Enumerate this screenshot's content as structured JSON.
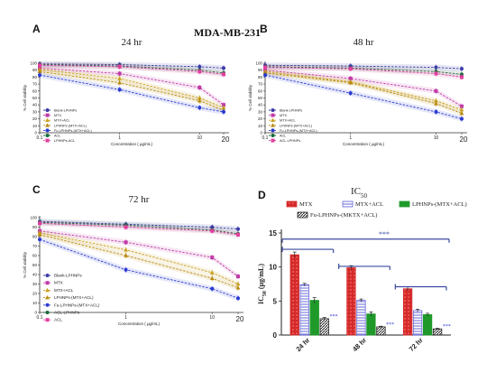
{
  "figure": {
    "main_title": "MDA-MB-231"
  },
  "chart_data": [
    {
      "panel": "A",
      "type": "line",
      "title": "24 hr",
      "xlabel": "Concentration ( µg/mL)",
      "ylabel": "% Cell viability",
      "xscale": "log",
      "x": [
        0.1,
        1,
        10,
        20
      ],
      "x_tick_labels": [
        "0.1",
        "1",
        "10",
        "20"
      ],
      "ylim": [
        0,
        100
      ],
      "y_ticks": [
        0,
        10,
        20,
        30,
        40,
        50,
        60,
        70,
        80,
        90,
        100
      ],
      "legend_position": "bottom-left",
      "series": [
        {
          "name": "Blank-LPHNPs",
          "color": "#3a3aa8",
          "marker": "circle",
          "values": [
            99,
            98,
            95,
            93
          ]
        },
        {
          "name": "MTX",
          "color": "#c03aa8",
          "marker": "square",
          "values": [
            93,
            85,
            65,
            40
          ]
        },
        {
          "name": "MTX+ACL",
          "color": "#c8a020",
          "marker": "triangle",
          "values": [
            91,
            78,
            50,
            36
          ]
        },
        {
          "name": "LPHNPs-(MTX+ACL)",
          "color": "#b88a10",
          "marker": "triangle",
          "values": [
            88,
            72,
            46,
            32
          ]
        },
        {
          "name": "Fu-LPHNPs-(MTX+ACL)",
          "color": "#2a3ad0",
          "marker": "circle",
          "values": [
            83,
            62,
            36,
            30
          ]
        },
        {
          "name": "ACL",
          "color": "#1a6a3a",
          "marker": "circle",
          "values": [
            98,
            96,
            90,
            86
          ]
        },
        {
          "name": "LPHNPs-ACL",
          "color": "#e040a0",
          "marker": "square",
          "values": [
            97,
            95,
            88,
            84
          ]
        }
      ]
    },
    {
      "panel": "B",
      "type": "line",
      "title": "48 hr",
      "xlabel": "Concentration ( µg/mL)",
      "ylabel": "% Cell viability",
      "xscale": "log",
      "x": [
        0.1,
        1,
        10,
        20
      ],
      "x_tick_labels": [
        "0.1",
        "1",
        "10",
        "20"
      ],
      "ylim": [
        0,
        100
      ],
      "y_ticks": [
        0,
        10,
        20,
        30,
        40,
        50,
        60,
        70,
        80,
        90,
        100
      ],
      "legend_position": "bottom-left",
      "series": [
        {
          "name": "Blank-LPHNPs",
          "color": "#3a3aa8",
          "marker": "circle",
          "values": [
            97,
            96,
            94,
            92
          ]
        },
        {
          "name": "MTX",
          "color": "#c03aa8",
          "marker": "square",
          "values": [
            90,
            78,
            60,
            38
          ]
        },
        {
          "name": "MTX+ACL",
          "color": "#c8a020",
          "marker": "triangle",
          "values": [
            88,
            73,
            46,
            33
          ]
        },
        {
          "name": "LPHNPs-(MTX+ACL)",
          "color": "#b88a10",
          "marker": "triangle",
          "values": [
            86,
            72,
            42,
            28
          ]
        },
        {
          "name": "Fu-LPHNPs-(MTX+ACL)",
          "color": "#2a3ad0",
          "marker": "circle",
          "values": [
            83,
            57,
            30,
            20
          ]
        },
        {
          "name": "ACL",
          "color": "#1a6a3a",
          "marker": "circle",
          "values": [
            95,
            93,
            88,
            84
          ]
        },
        {
          "name": "ACL-LPHNPs",
          "color": "#e040a0",
          "marker": "square",
          "values": [
            94,
            92,
            85,
            80
          ]
        }
      ]
    },
    {
      "panel": "C",
      "type": "line",
      "title": "72 hr",
      "xlabel": "Concentration ( µg/mL)",
      "ylabel": "% Cell viability",
      "xscale": "log",
      "x": [
        0.1,
        1,
        10,
        20
      ],
      "x_tick_labels": [
        "0.1",
        "1",
        "10",
        "20"
      ],
      "ylim": [
        0,
        100
      ],
      "y_ticks": [
        0,
        10,
        20,
        30,
        40,
        50,
        60,
        70,
        80,
        90,
        100
      ],
      "legend_position": "bottom-left",
      "series": [
        {
          "name": "Blank-LPHNPs",
          "color": "#3a3aa8",
          "marker": "circle",
          "values": [
            96,
            93,
            90,
            88
          ]
        },
        {
          "name": "MTX",
          "color": "#c03aa8",
          "marker": "square",
          "values": [
            86,
            74,
            58,
            38
          ]
        },
        {
          "name": "MTX+ACL",
          "color": "#c8a020",
          "marker": "triangle",
          "values": [
            84,
            66,
            42,
            30
          ]
        },
        {
          "name": "LPHNPs-(MTX+ACL)",
          "color": "#b88a10",
          "marker": "triangle",
          "values": [
            82,
            60,
            36,
            26
          ]
        },
        {
          "name": "Fu-LPHNPs-(MTX+ACL)",
          "color": "#2a3ad0",
          "marker": "circle",
          "values": [
            77,
            45,
            25,
            15
          ]
        },
        {
          "name": "ACL-LPHNPs",
          "color": "#1a6a3a",
          "marker": "circle",
          "values": [
            95,
            92,
            87,
            83
          ]
        },
        {
          "name": "ACL",
          "color": "#e040a0",
          "marker": "square",
          "values": [
            94,
            90,
            86,
            82
          ]
        }
      ]
    },
    {
      "panel": "D",
      "type": "bar",
      "title": "IC50",
      "ylabel": "IC50 (µg/mL)",
      "categories": [
        "24 hr",
        "48 hr",
        "72 hr"
      ],
      "ylim": [
        0,
        15
      ],
      "y_ticks": [
        0,
        5,
        10,
        15
      ],
      "legend_position": "top",
      "significance_label": "***",
      "series": [
        {
          "name": "MTX",
          "color": "#d42a2a",
          "pattern": "solid",
          "values": [
            11.8,
            9.9,
            6.8
          ],
          "errors": [
            0.4,
            0.3,
            0.3
          ]
        },
        {
          "name": "MTX+ACL",
          "color": "#6a6ad8",
          "pattern": "hlines",
          "values": [
            7.4,
            5.1,
            3.6
          ],
          "errors": [
            0.2,
            0.2,
            0.2
          ]
        },
        {
          "name": "LPHNPs-(MTX+ACL)",
          "color": "#1f9a2a",
          "pattern": "solid",
          "values": [
            5.1,
            3.1,
            3.0
          ],
          "errors": [
            0.4,
            0.3,
            0.2
          ]
        },
        {
          "name": "Fu-LPHNPs-(MKTX+ACL)",
          "color": "#222222",
          "pattern": "diag",
          "values": [
            2.4,
            1.2,
            0.9
          ],
          "errors": [
            0.2,
            0.1,
            0.1
          ]
        }
      ]
    }
  ]
}
